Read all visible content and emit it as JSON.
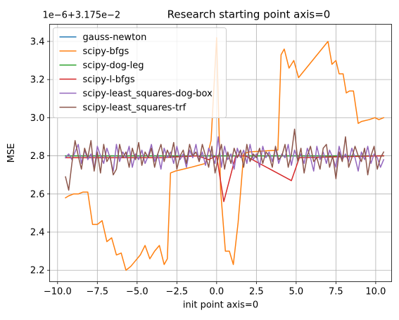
{
  "chart_data": {
    "type": "line",
    "title": "Research starting point axis=0",
    "xlabel": "init point axis=0",
    "ylabel": "MSE",
    "offset_label": "1e−6+3.175e−2",
    "xlim": [
      -10.5,
      11.0
    ],
    "ylim": [
      2.14,
      3.49
    ],
    "xticks": [
      -10.0,
      -7.5,
      -5.0,
      -2.5,
      0.0,
      2.5,
      5.0,
      7.5,
      10.0
    ],
    "xtick_labels": [
      "−10.0",
      "−7.5",
      "−5.0",
      "−2.5",
      "0.0",
      "2.5",
      "5.0",
      "7.5",
      "10.0"
    ],
    "yticks": [
      2.2,
      2.4,
      2.6,
      2.8,
      3.0,
      3.2,
      3.4
    ],
    "ytick_labels": [
      "2.2",
      "2.4",
      "2.6",
      "2.8",
      "3.0",
      "3.2",
      "3.4"
    ],
    "grid": true,
    "legend_position": "top-left",
    "series": [
      {
        "name": "gauss-newton",
        "color": "#1f77b4",
        "x": [
          -9.5,
          10.5
        ],
        "y": [
          2.8,
          2.8
        ]
      },
      {
        "name": "scipy-bfgs",
        "color": "#ff7f0e",
        "x": [
          -9.5,
          -9.3,
          -9.0,
          -8.7,
          -8.4,
          -8.1,
          -7.8,
          -7.5,
          -7.2,
          -6.9,
          -6.6,
          -6.3,
          -6.0,
          -5.7,
          -5.4,
          -5.1,
          -4.8,
          -4.5,
          -4.2,
          -3.9,
          -3.6,
          -3.3,
          -3.1,
          -2.9,
          -2.6,
          -1.6,
          -0.7,
          -0.35,
          0.0,
          0.25,
          0.55,
          0.8,
          1.05,
          1.35,
          1.7,
          2.0,
          3.85,
          4.05,
          4.25,
          4.55,
          4.85,
          5.15,
          7.0,
          7.25,
          7.5,
          7.7,
          7.95,
          8.15,
          8.35,
          8.6,
          8.9,
          9.1,
          9.6,
          9.95,
          10.2,
          10.5
        ],
        "y": [
          2.58,
          2.59,
          2.6,
          2.6,
          2.61,
          2.61,
          2.44,
          2.44,
          2.46,
          2.35,
          2.37,
          2.28,
          2.29,
          2.2,
          2.22,
          2.25,
          2.28,
          2.33,
          2.26,
          2.3,
          2.33,
          2.23,
          2.26,
          2.71,
          2.72,
          2.74,
          2.76,
          2.88,
          3.42,
          2.62,
          2.3,
          2.3,
          2.23,
          2.45,
          2.81,
          2.82,
          2.83,
          3.33,
          3.36,
          3.26,
          3.3,
          3.21,
          3.4,
          3.28,
          3.3,
          3.23,
          3.23,
          3.13,
          3.14,
          3.14,
          2.97,
          2.98,
          2.99,
          3.0,
          2.99,
          3.0
        ]
      },
      {
        "name": "scipy-dog-leg",
        "color": "#2ca02c",
        "x": [
          -9.5,
          10.5
        ],
        "y": [
          2.8,
          2.8
        ]
      },
      {
        "name": "scipy-l-bfgs",
        "color": "#d62728",
        "x": [
          -9.5,
          -3.5,
          -1.2,
          -0.5,
          0.0,
          0.45,
          1.2,
          1.8,
          4.7,
          5.2,
          10.5
        ],
        "y": [
          2.79,
          2.79,
          2.8,
          2.78,
          2.8,
          2.56,
          2.8,
          2.8,
          2.67,
          2.79,
          2.8
        ]
      },
      {
        "name": "scipy-least_squares-dog-box",
        "color": "#9467bd",
        "x": [
          -9.5,
          -9.3,
          -9.1,
          -8.9,
          -8.7,
          -8.5,
          -8.3,
          -8.1,
          -7.9,
          -7.7,
          -7.5,
          -7.3,
          -7.1,
          -6.9,
          -6.7,
          -6.5,
          -6.3,
          -6.1,
          -5.9,
          -5.7,
          -5.5,
          -5.3,
          -5.1,
          -4.9,
          -4.7,
          -4.5,
          -4.3,
          -4.1,
          -3.9,
          -3.7,
          -3.5,
          -3.3,
          -3.1,
          -2.9,
          -2.7,
          -2.5,
          -2.3,
          -2.1,
          -1.9,
          -1.7,
          -1.5,
          -1.3,
          -1.1,
          -0.9,
          -0.7,
          -0.5,
          -0.3,
          -0.1,
          0.1,
          0.3,
          0.5,
          0.7,
          0.9,
          1.1,
          1.3,
          1.5,
          1.7,
          1.9,
          2.1,
          2.3,
          2.5,
          2.7,
          2.9,
          3.1,
          3.3,
          3.5,
          3.7,
          3.9,
          4.1,
          4.3,
          4.5,
          4.7,
          4.9,
          5.1,
          5.3,
          5.5,
          5.7,
          5.9,
          6.1,
          6.3,
          6.5,
          6.7,
          6.9,
          7.1,
          7.3,
          7.5,
          7.7,
          7.9,
          8.1,
          8.3,
          8.5,
          8.7,
          8.9,
          9.1,
          9.3,
          9.5,
          9.7,
          9.9,
          10.1,
          10.3,
          10.5
        ],
        "y": [
          2.79,
          2.81,
          2.78,
          2.82,
          2.86,
          2.76,
          2.83,
          2.78,
          2.81,
          2.73,
          2.85,
          2.8,
          2.76,
          2.84,
          2.79,
          2.72,
          2.86,
          2.77,
          2.82,
          2.79,
          2.85,
          2.74,
          2.81,
          2.78,
          2.83,
          2.76,
          2.8,
          2.86,
          2.77,
          2.81,
          2.73,
          2.84,
          2.79,
          2.82,
          2.76,
          2.85,
          2.78,
          2.81,
          2.74,
          2.83,
          2.79,
          2.86,
          2.77,
          2.82,
          2.75,
          2.84,
          2.8,
          2.76,
          2.9,
          2.74,
          2.85,
          2.78,
          2.81,
          2.73,
          2.84,
          2.79,
          2.83,
          2.76,
          2.86,
          2.78,
          2.81,
          2.74,
          2.85,
          2.79,
          2.82,
          2.77,
          2.84,
          2.76,
          2.81,
          2.79,
          2.86,
          2.75,
          2.83,
          2.78,
          2.81,
          2.76,
          2.84,
          2.79,
          2.72,
          2.85,
          2.78,
          2.82,
          2.76,
          2.83,
          2.79,
          2.74,
          2.85,
          2.78,
          2.81,
          2.77,
          2.84,
          2.79,
          2.72,
          2.82,
          2.78,
          2.85,
          2.76,
          2.81,
          2.79,
          2.74,
          2.78
        ]
      },
      {
        "name": "scipy-least_squares-trf",
        "color": "#8c564b",
        "x": [
          -9.5,
          -9.3,
          -9.1,
          -8.9,
          -8.7,
          -8.5,
          -8.3,
          -8.1,
          -7.9,
          -7.7,
          -7.5,
          -7.3,
          -7.1,
          -6.9,
          -6.7,
          -6.5,
          -6.3,
          -6.1,
          -5.9,
          -5.7,
          -5.5,
          -5.3,
          -5.1,
          -4.9,
          -4.7,
          -4.5,
          -4.3,
          -4.1,
          -3.9,
          -3.7,
          -3.5,
          -3.3,
          -3.1,
          -2.9,
          -2.7,
          -2.5,
          -2.3,
          -2.1,
          -1.9,
          -1.7,
          -1.5,
          -1.3,
          -1.1,
          -0.9,
          -0.7,
          -0.5,
          -0.3,
          -0.1,
          0.1,
          0.3,
          0.5,
          0.7,
          0.9,
          1.1,
          1.3,
          1.5,
          1.7,
          1.9,
          2.1,
          2.3,
          2.5,
          2.7,
          2.9,
          3.1,
          3.3,
          3.5,
          3.7,
          3.9,
          4.1,
          4.3,
          4.5,
          4.7,
          4.9,
          5.1,
          5.3,
          5.5,
          5.7,
          5.9,
          6.1,
          6.3,
          6.5,
          6.7,
          6.9,
          7.1,
          7.3,
          7.5,
          7.7,
          7.9,
          8.1,
          8.3,
          8.5,
          8.7,
          8.9,
          9.1,
          9.3,
          9.5,
          9.7,
          9.9,
          10.1,
          10.3,
          10.5
        ],
        "y": [
          2.69,
          2.62,
          2.76,
          2.88,
          2.8,
          2.73,
          2.84,
          2.79,
          2.88,
          2.72,
          2.82,
          2.71,
          2.86,
          2.77,
          2.8,
          2.7,
          2.73,
          2.86,
          2.79,
          2.82,
          2.74,
          2.84,
          2.78,
          2.87,
          2.75,
          2.82,
          2.79,
          2.84,
          2.74,
          2.81,
          2.86,
          2.77,
          2.83,
          2.79,
          2.87,
          2.73,
          2.8,
          2.83,
          2.76,
          2.86,
          2.8,
          2.82,
          2.77,
          2.86,
          2.8,
          2.74,
          2.85,
          2.71,
          2.79,
          2.86,
          2.73,
          2.82,
          2.76,
          2.84,
          2.79,
          2.83,
          2.74,
          2.86,
          2.77,
          2.81,
          2.79,
          2.84,
          2.76,
          2.82,
          2.8,
          2.74,
          2.85,
          2.78,
          2.8,
          2.86,
          2.74,
          2.81,
          2.94,
          2.77,
          2.84,
          2.71,
          2.8,
          2.85,
          2.77,
          2.79,
          2.73,
          2.84,
          2.86,
          2.74,
          2.8,
          2.68,
          2.82,
          2.77,
          2.9,
          2.74,
          2.79,
          2.85,
          2.8,
          2.77,
          2.84,
          2.7,
          2.8,
          2.85,
          2.73,
          2.79,
          2.82
        ]
      }
    ]
  }
}
